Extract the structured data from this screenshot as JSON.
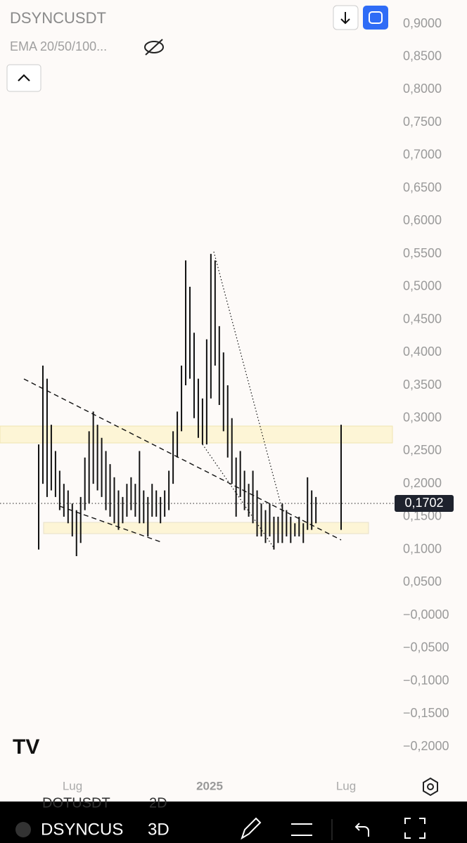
{
  "header": {
    "symbol": "DSYNCUSDT",
    "indicator": "EMA 20/50/100..."
  },
  "chart_data": {
    "type": "ohlc",
    "ylim": [
      -0.2,
      0.9
    ],
    "yticks": [
      {
        "value": 0.9,
        "label": "0,9000"
      },
      {
        "value": 0.85,
        "label": "0,8500"
      },
      {
        "value": 0.8,
        "label": "0,8000"
      },
      {
        "value": 0.75,
        "label": "0,7500"
      },
      {
        "value": 0.7,
        "label": "0,7000"
      },
      {
        "value": 0.65,
        "label": "0,6500"
      },
      {
        "value": 0.6,
        "label": "0,6000"
      },
      {
        "value": 0.55,
        "label": "0,5500"
      },
      {
        "value": 0.5,
        "label": "0,5000"
      },
      {
        "value": 0.45,
        "label": "0,4500"
      },
      {
        "value": 0.4,
        "label": "0,4000"
      },
      {
        "value": 0.35,
        "label": "0,3500"
      },
      {
        "value": 0.3,
        "label": "0,3000"
      },
      {
        "value": 0.25,
        "label": "0,2500"
      },
      {
        "value": 0.2,
        "label": "0,2000"
      },
      {
        "value": 0.15,
        "label": "0,1500"
      },
      {
        "value": 0.1,
        "label": "0,1000"
      },
      {
        "value": 0.05,
        "label": "0,0500"
      },
      {
        "value": 0,
        "label": "−0,0000"
      },
      {
        "value": -0.05,
        "label": "−0,0500"
      },
      {
        "value": -0.1,
        "label": "−0,1000"
      },
      {
        "value": -0.15,
        "label": "−0,1500"
      },
      {
        "value": -0.2,
        "label": "−0,2000"
      }
    ],
    "x_labels": [
      "Lug",
      "2025",
      "Lug"
    ],
    "last_price": {
      "value": 0.1702,
      "label": "0,1702"
    },
    "high": [
      0.26,
      0.38,
      0.36,
      0.29,
      0.25,
      0.22,
      0.2,
      0.19,
      0.17,
      0.16,
      0.18,
      0.24,
      0.28,
      0.31,
      0.29,
      0.27,
      0.25,
      0.23,
      0.21,
      0.19,
      0.18,
      0.2,
      0.21,
      0.2,
      0.25,
      0.19,
      0.18,
      0.2,
      0.19,
      0.18,
      0.19,
      0.22,
      0.28,
      0.31,
      0.38,
      0.54,
      0.5,
      0.43,
      0.36,
      0.33,
      0.42,
      0.55,
      0.54,
      0.44,
      0.4,
      0.35,
      0.3,
      0.24,
      0.25,
      0.22,
      0.2,
      0.22,
      0.19,
      0.17,
      0.16,
      0.17,
      0.15,
      0.15,
      0.17,
      0.16,
      0.15,
      0.14,
      0.15,
      0.14,
      0.21,
      0.19,
      0.18,
      null,
      null,
      null,
      null,
      null,
      0.29
    ],
    "low": [
      0.1,
      0.2,
      0.18,
      0.19,
      0.18,
      0.16,
      0.15,
      0.14,
      0.12,
      0.09,
      0.11,
      0.16,
      0.17,
      0.2,
      0.19,
      0.18,
      0.16,
      0.15,
      0.14,
      0.13,
      0.14,
      0.15,
      0.16,
      0.15,
      0.14,
      0.14,
      0.12,
      0.15,
      0.15,
      0.14,
      0.15,
      0.16,
      0.2,
      0.24,
      0.28,
      0.35,
      0.36,
      0.3,
      0.27,
      0.26,
      0.26,
      0.33,
      0.38,
      0.32,
      0.28,
      0.24,
      0.2,
      0.15,
      0.18,
      0.16,
      0.15,
      0.14,
      0.12,
      0.12,
      0.11,
      0.12,
      0.1,
      0.11,
      0.11,
      0.12,
      0.11,
      0.12,
      0.12,
      0.11,
      0.13,
      0.13,
      0.14,
      null,
      null,
      null,
      null,
      null,
      0.13
    ]
  },
  "footer": {
    "faded_symbol": "DOTUSDT",
    "faded_interval": "2D",
    "symbol": "DSYNCUS",
    "interval": "3D"
  }
}
